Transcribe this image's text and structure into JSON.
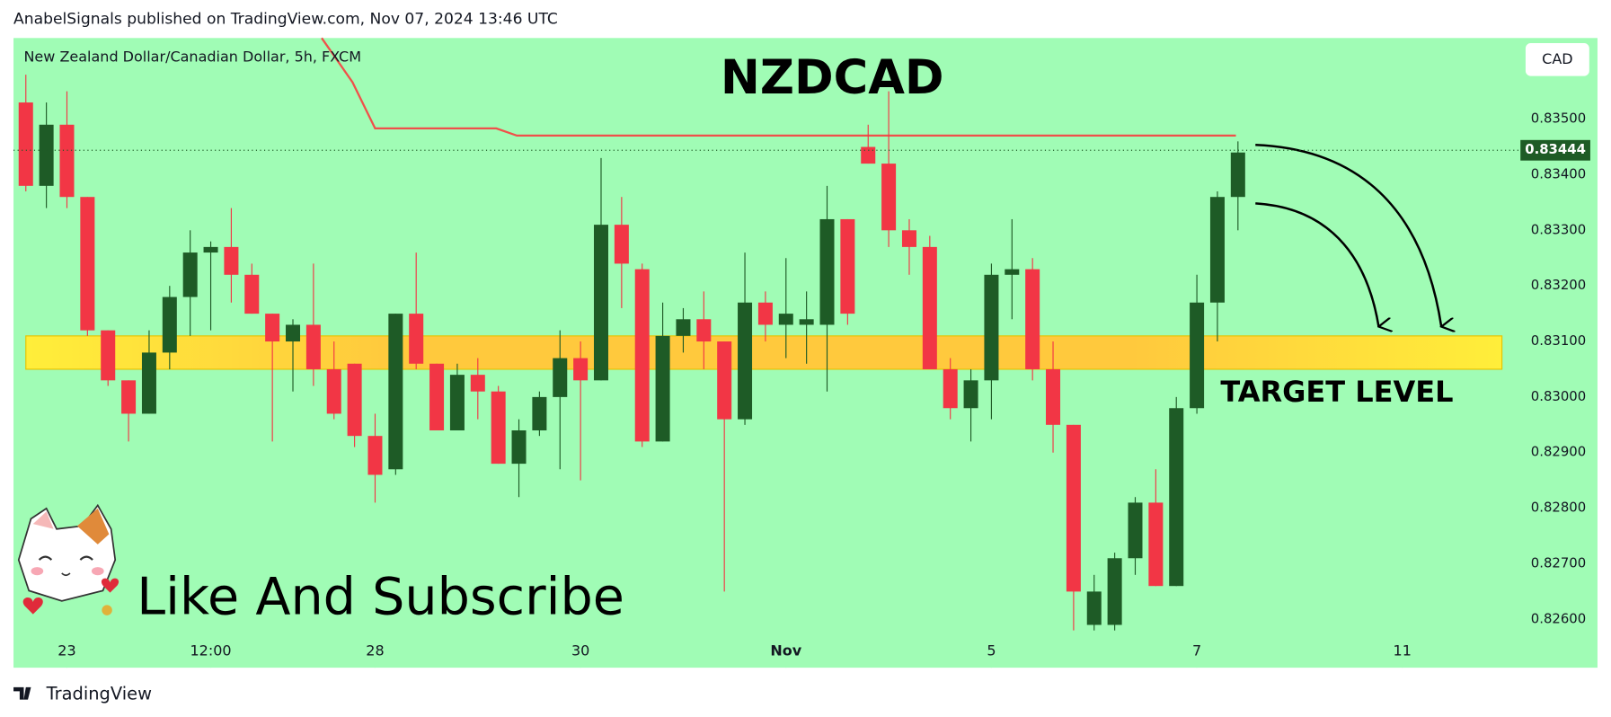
{
  "header": "AnabelSignals published on TradingView.com, Nov 07, 2024 13:46 UTC",
  "footer": "TradingView",
  "chart_data": {
    "type": "candlestick",
    "title": "NZDCAD",
    "subtitle": "New Zealand Dollar/Canadian Dollar, 5h, FXCM",
    "currency": "CAD",
    "annotation": "Like And Subscribe",
    "up_color": "#1e5b26",
    "down_color": "#f23645",
    "open": [
      0.8353,
      0.8338,
      0.8349,
      0.8336,
      0.8312,
      0.8303,
      0.8297,
      0.8308,
      0.8318,
      0.8326,
      0.8327,
      0.8322,
      0.8315,
      0.831,
      0.8313,
      0.8305,
      0.8306,
      0.8293,
      0.8287,
      0.8315,
      0.8306,
      0.8294,
      0.8304,
      0.8301,
      0.8288,
      0.8294,
      0.83,
      0.8307,
      0.8303,
      0.8331,
      0.8323,
      0.8292,
      0.8311,
      0.8314,
      0.831,
      0.8296,
      0.8317,
      0.8313,
      0.8313,
      0.8313,
      0.8332,
      0.8345,
      0.8342,
      0.833,
      0.8327,
      0.8305,
      0.8298,
      0.8303,
      0.8322,
      0.8323,
      0.8305,
      0.8295,
      0.8259,
      0.8259,
      0.8271,
      0.8281,
      0.8266,
      0.8298,
      0.8317,
      0.8336
    ],
    "high": [
      0.8358,
      0.8353,
      0.8355,
      0.8336,
      0.8312,
      0.8303,
      0.8312,
      0.832,
      0.833,
      0.8328,
      0.8334,
      0.8324,
      0.8315,
      0.8314,
      0.8324,
      0.831,
      0.8306,
      0.8297,
      0.8315,
      0.8326,
      0.8306,
      0.8306,
      0.8307,
      0.8302,
      0.8296,
      0.8301,
      0.8312,
      0.831,
      0.8343,
      0.8336,
      0.8324,
      0.8317,
      0.8316,
      0.8319,
      0.831,
      0.8326,
      0.8319,
      0.8325,
      0.8319,
      0.8338,
      0.8332,
      0.8349,
      0.8355,
      0.8332,
      0.8329,
      0.8307,
      0.8305,
      0.8324,
      0.8332,
      0.8325,
      0.831,
      0.8295,
      0.8268,
      0.8272,
      0.8282,
      0.8287,
      0.83,
      0.8322,
      0.8337,
      0.8346
    ],
    "low": [
      0.8337,
      0.8334,
      0.8334,
      0.8311,
      0.8302,
      0.8292,
      0.8297,
      0.8305,
      0.8311,
      0.8312,
      0.8317,
      0.8315,
      0.8292,
      0.8301,
      0.8302,
      0.8296,
      0.8291,
      0.8281,
      0.8286,
      0.8305,
      0.8294,
      0.8294,
      0.8296,
      0.8288,
      0.8282,
      0.8293,
      0.8287,
      0.8285,
      0.8303,
      0.8316,
      0.8291,
      0.8292,
      0.8308,
      0.8305,
      0.8265,
      0.8295,
      0.831,
      0.8307,
      0.8306,
      0.8301,
      0.8313,
      0.8342,
      0.8327,
      0.8322,
      0.8305,
      0.8296,
      0.8292,
      0.8296,
      0.8314,
      0.8303,
      0.829,
      0.8258,
      0.8258,
      0.8258,
      0.8268,
      0.8266,
      0.8266,
      0.8297,
      0.831,
      0.833
    ],
    "close": [
      0.8338,
      0.8349,
      0.8336,
      0.8312,
      0.8303,
      0.8297,
      0.8308,
      0.8318,
      0.8326,
      0.8327,
      0.8322,
      0.8315,
      0.831,
      0.8313,
      0.8305,
      0.8297,
      0.8293,
      0.8286,
      0.8315,
      0.8306,
      0.8294,
      0.8304,
      0.8301,
      0.8288,
      0.8294,
      0.83,
      0.8307,
      0.8303,
      0.8331,
      0.8324,
      0.8292,
      0.8311,
      0.8314,
      0.831,
      0.8296,
      0.8317,
      0.8313,
      0.8315,
      0.8314,
      0.8332,
      0.8315,
      0.8342,
      0.833,
      0.8327,
      0.8305,
      0.8298,
      0.8303,
      0.8322,
      0.8323,
      0.8305,
      0.8295,
      0.8265,
      0.8265,
      0.8271,
      0.8281,
      0.8266,
      0.8298,
      0.8317,
      0.8336,
      0.8344
    ],
    "xlim": [
      -0.6,
      72.5
    ],
    "xticks": [
      {
        "value": 2,
        "label": "23"
      },
      {
        "value": 9,
        "label": "12:00"
      },
      {
        "value": 17,
        "label": "28"
      },
      {
        "value": 27,
        "label": "30"
      },
      {
        "value": 37,
        "label": "Nov"
      },
      {
        "value": 47,
        "label": "5"
      },
      {
        "value": 57,
        "label": "7"
      },
      {
        "value": 67,
        "label": "11"
      }
    ],
    "ylim": [
      0.82513,
      0.83646
    ],
    "yticks": [
      {
        "value": 0.826,
        "label": "0.82600"
      },
      {
        "value": 0.827,
        "label": "0.82700"
      },
      {
        "value": 0.828,
        "label": "0.82800"
      },
      {
        "value": 0.829,
        "label": "0.82900"
      },
      {
        "value": 0.83,
        "label": "0.83000"
      },
      {
        "value": 0.831,
        "label": "0.83100"
      },
      {
        "value": 0.832,
        "label": "0.83200"
      },
      {
        "value": 0.833,
        "label": "0.83300"
      },
      {
        "value": 0.834,
        "label": "0.83400"
      },
      {
        "value": 0.835,
        "label": "0.83500"
      }
    ],
    "last_price": {
      "value": 0.83444,
      "label": "0.83444"
    },
    "target_zone": {
      "low": 0.8305,
      "high": 0.8311,
      "label": "TARGET LEVEL"
    }
  }
}
